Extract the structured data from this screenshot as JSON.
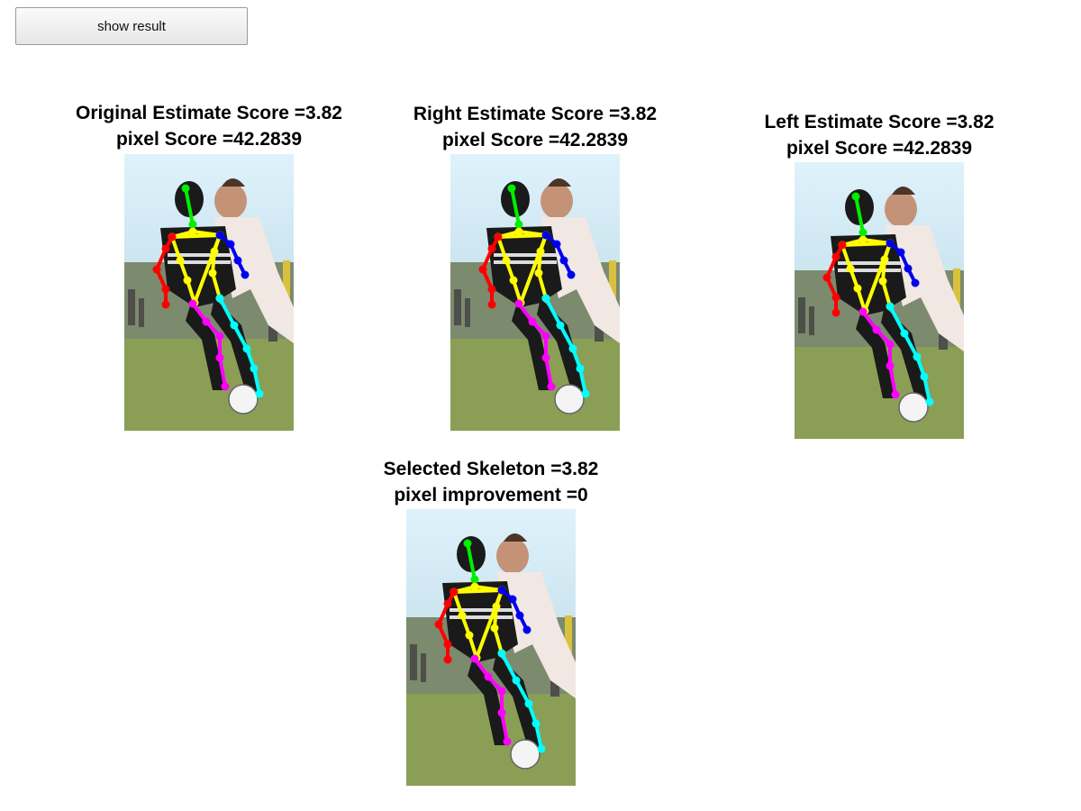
{
  "toolbar": {
    "show_result_label": "show result"
  },
  "panels": [
    {
      "id": "original",
      "line1": "Original Estimate Score =3.82",
      "line2": "pixel Score =42.2839"
    },
    {
      "id": "right",
      "line1": "Right Estimate Score =3.82",
      "line2": "pixel Score =42.2839"
    },
    {
      "id": "left",
      "line1": "Left Estimate Score =3.82",
      "line2": "pixel Score =42.2839"
    },
    {
      "id": "selected",
      "line1": "Selected Skeleton =3.82",
      "line2": "pixel improvement =0"
    }
  ],
  "skeleton_colors": {
    "head": "#00ee00",
    "torso": "#ffff00",
    "right_arm": "#ff0000",
    "left_arm": "#0000ee",
    "right_leg": "#ff00ff",
    "left_leg": "#00ffff"
  }
}
